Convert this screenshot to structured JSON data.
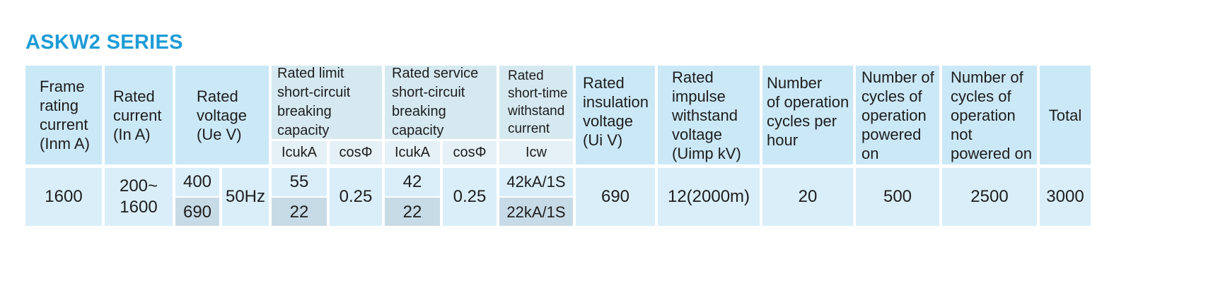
{
  "title": "ASKW2 SERIES",
  "headers": {
    "frame_rating": [
      "Frame",
      "rating",
      "current",
      "(Inm A)"
    ],
    "rated_current": [
      "Rated",
      "current",
      "(In A)"
    ],
    "rated_voltage": [
      "Rated",
      "voltage",
      "(Ue V)"
    ],
    "limit_breaking": [
      "Rated limit",
      "short-circuit",
      "breaking capacity"
    ],
    "service_breaking": [
      "Rated service",
      "short-circuit",
      "breaking capacity"
    ],
    "short_time": [
      "Rated",
      "short-time",
      "withstand",
      "current"
    ],
    "insulation_voltage": [
      "Rated",
      "insulation",
      "voltage",
      "(Ui V)"
    ],
    "impulse_voltage": [
      "Rated",
      "impulse",
      "withstand",
      "voltage",
      "(Uimp kV)"
    ],
    "ops_per_hour": [
      "Number",
      "of operation",
      "cycles per",
      "hour"
    ],
    "cycles_powered": [
      "Number of",
      "cycles of",
      "operation",
      "powered",
      "on"
    ],
    "cycles_not_powered": [
      "Number of",
      "cycles of",
      "operation",
      "not",
      "powered on"
    ],
    "total": "Total"
  },
  "subheaders": {
    "icuka_1": "IcukA",
    "cos_1": "cosΦ",
    "icuka_2": "IcukA",
    "cos_2": "cosΦ",
    "icw": "Icw"
  },
  "row": {
    "frame_rating": "1600",
    "rated_current": [
      "200~",
      "1600"
    ],
    "voltage_1": "400",
    "voltage_2": "690",
    "frequency": "50Hz",
    "limit_icu_1": "55",
    "limit_icu_2": "22",
    "limit_cos": "0.25",
    "service_icu_1": "42",
    "service_icu_2": "22",
    "service_cos": "0.25",
    "icw_1": "42kA/1S",
    "icw_2": "22kA/1S",
    "insulation": "690",
    "impulse": "12(2000m)",
    "ops_per_hour": "20",
    "cycles_powered": "500",
    "cycles_not_powered": "2500",
    "total": "3000"
  }
}
